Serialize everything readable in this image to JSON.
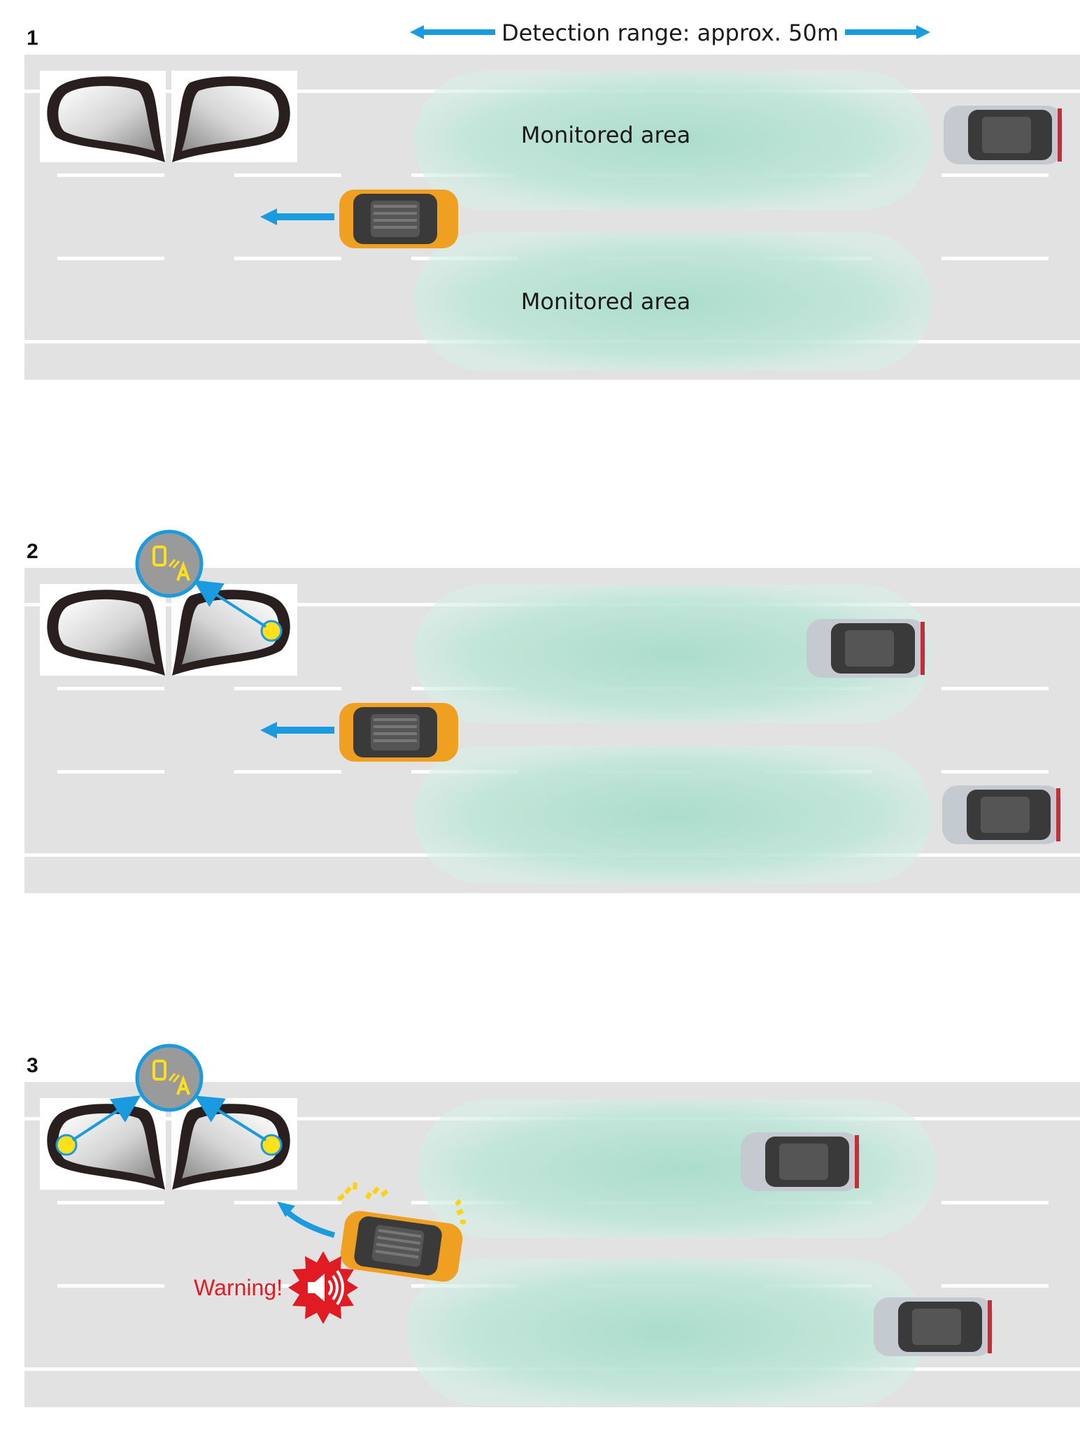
{
  "header": {
    "range_label": "Detection range: approx. 50m"
  },
  "scenes": [
    {
      "number": "1",
      "upper_area_label": "Monitored area",
      "lower_area_label": "Monitored area"
    },
    {
      "number": "2"
    },
    {
      "number": "3",
      "warning_label": "Warning!"
    }
  ],
  "colors": {
    "road": "#e2e2e2",
    "lane_marking": "#ffffff",
    "monitored_area": "#b9e3d3",
    "ego_car": "#f0a020",
    "other_car": "#c5cad0",
    "arrow": "#1a9be0",
    "indicator_ring": "#1a9be0",
    "indicator_fill": "#9a9a9a",
    "indicator_icon": "#ffe01a",
    "warning": "#e01b24"
  },
  "icons": [
    "left-mirror-icon",
    "right-mirror-icon",
    "bsm-indicator-icon",
    "warning-sound-icon",
    "direction-arrow-icon"
  ]
}
